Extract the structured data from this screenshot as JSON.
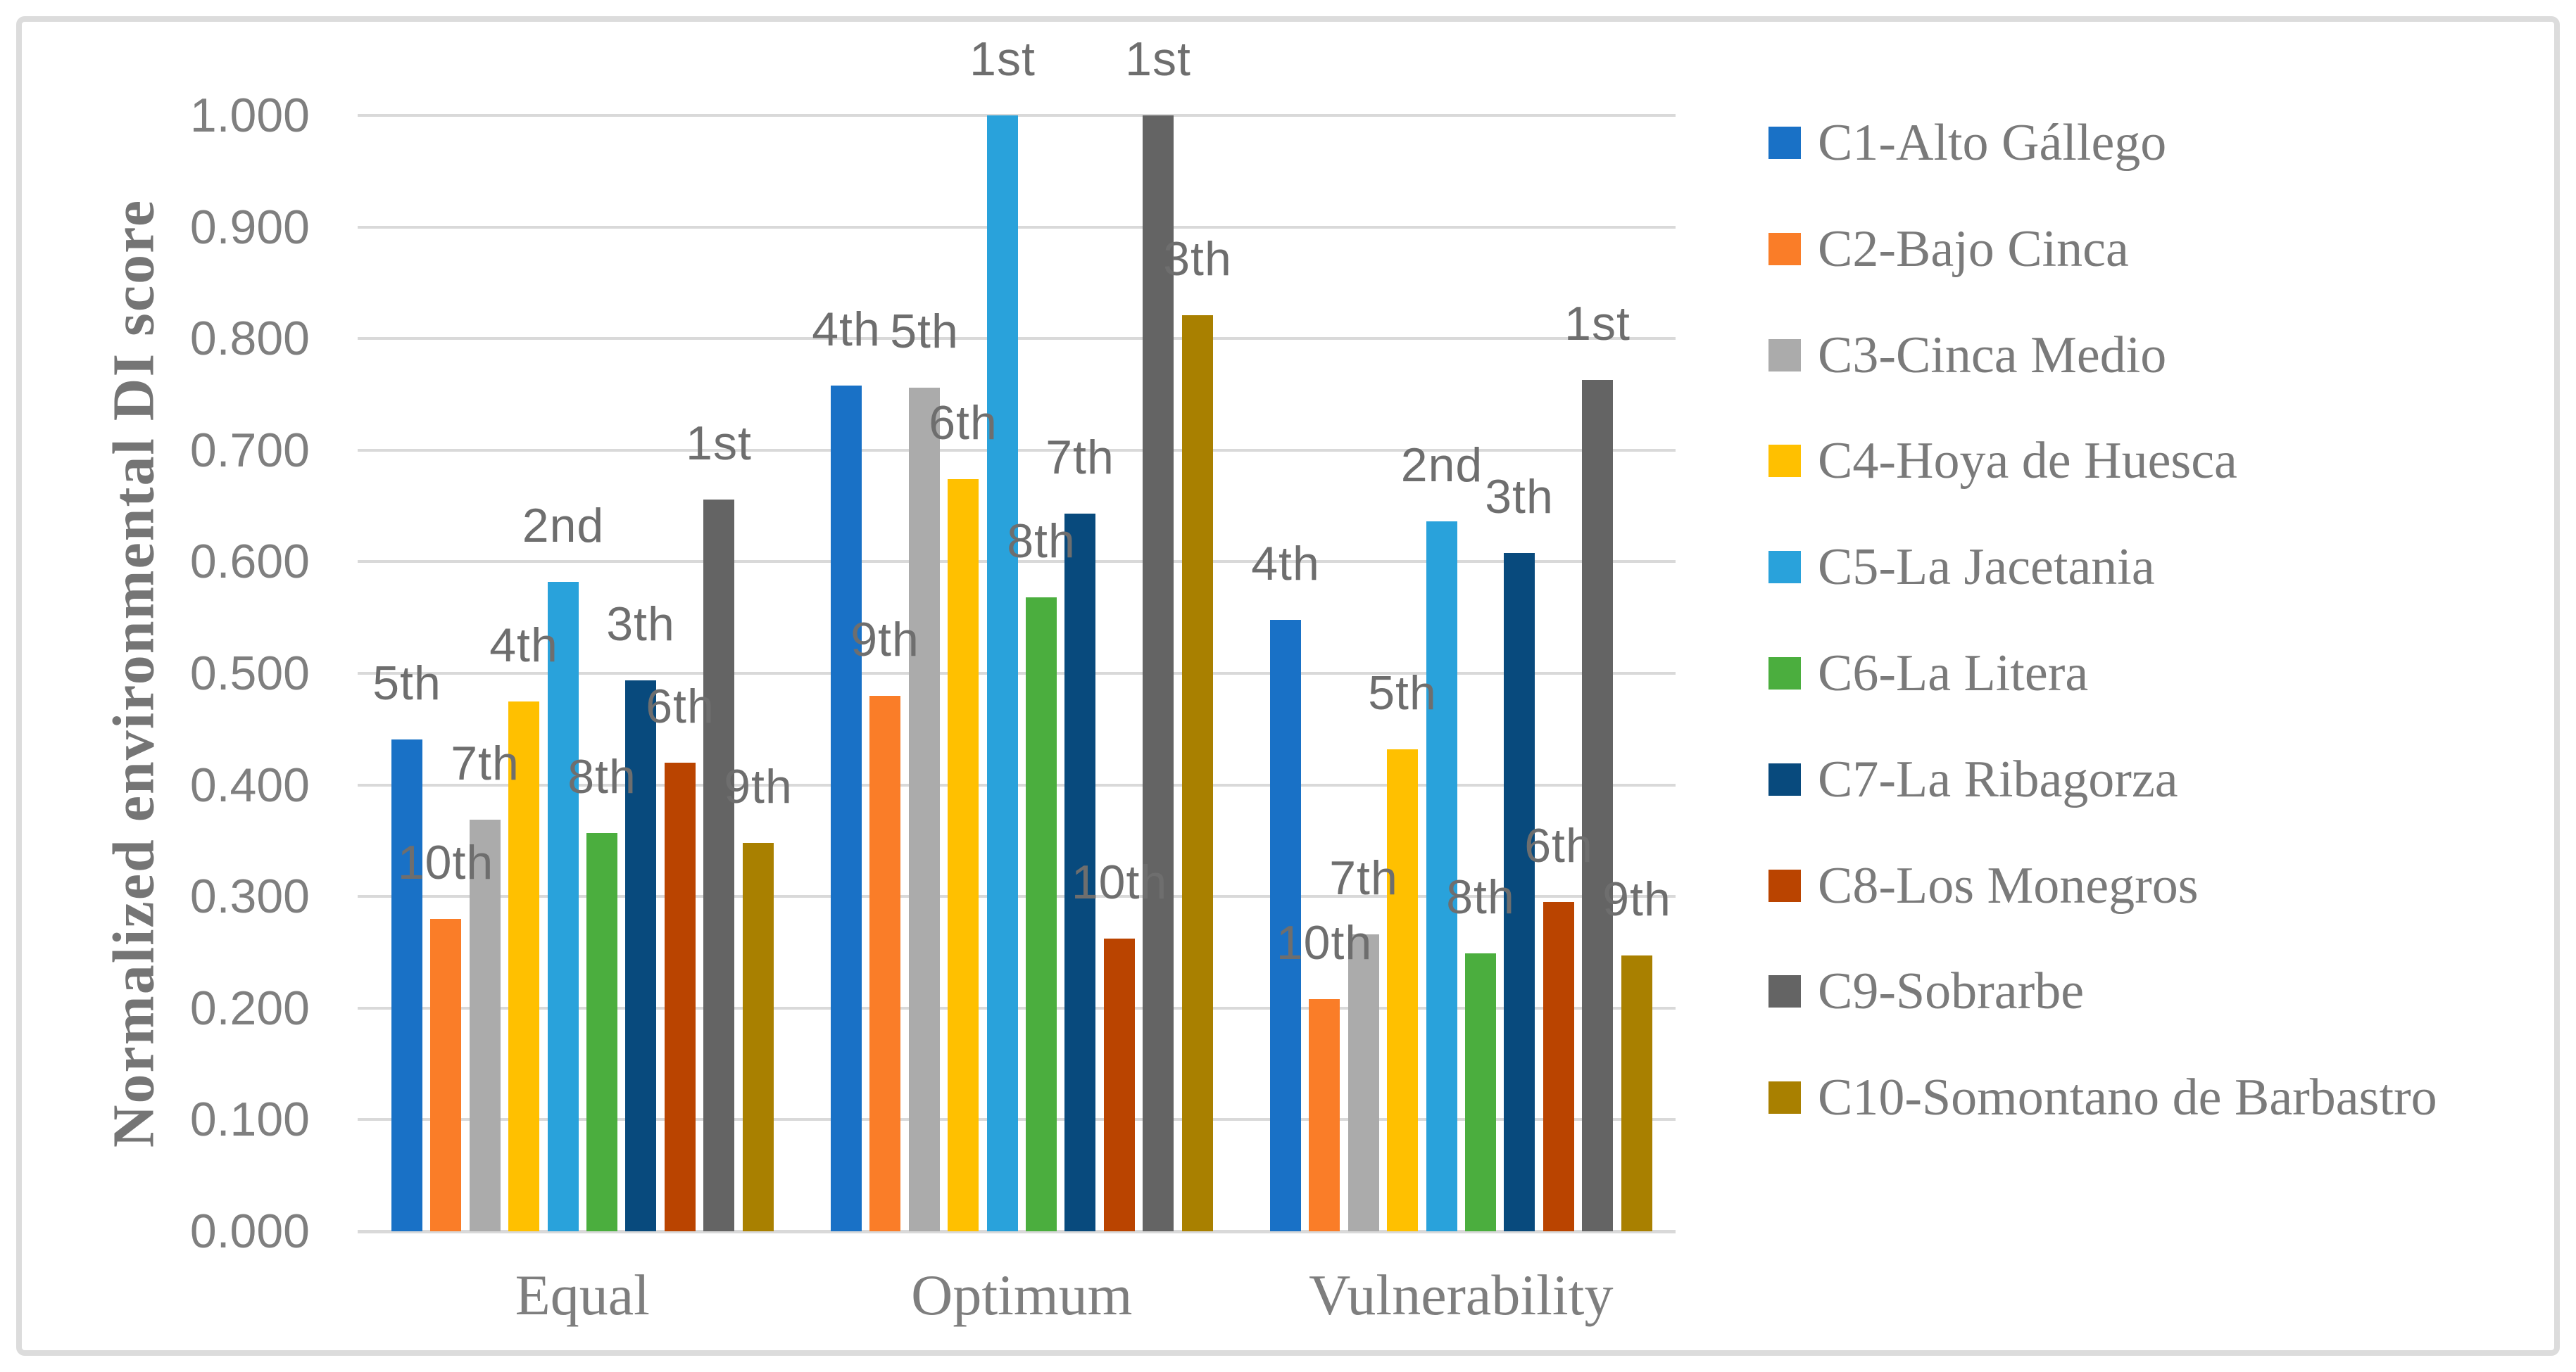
{
  "figure": {
    "background": "#FFFFFF",
    "border_color": "#DCDCDC",
    "gridline_color": "#D9D9D9",
    "text_gray": "#7F7F7F"
  },
  "y_axis": {
    "title": "Normalized environmental DI score",
    "tick_labels": [
      "1.000",
      "0.900",
      "0.800",
      "0.700",
      "0.600",
      "0.500",
      "0.400",
      "0.300",
      "0.200",
      "0.100",
      "0.000"
    ]
  },
  "x_axis": {
    "categories": [
      "Equal",
      "Optimum",
      "Vulnerability"
    ]
  },
  "legend": {
    "position": "right",
    "items": [
      "C1-Alto Gállego",
      "C2-Bajo Cinca",
      "C3-Cinca Medio",
      "C4-Hoya de Huesca",
      "C5-La Jacetania",
      "C6-La Litera",
      "C7-La Ribagorza",
      "C8-Los Monegros",
      "C9-Sobrarbe",
      "C10-Somontano de Barbastro"
    ]
  },
  "chart_data": {
    "type": "bar",
    "title": "",
    "xlabel": "",
    "ylabel": "Normalized environmental DI score",
    "ylim": [
      0,
      1
    ],
    "grid": true,
    "legend_position": "right",
    "categories": [
      "Equal",
      "Optimum",
      "Vulnerability"
    ],
    "y_tick_labels": [
      "1.000",
      "0.900",
      "0.800",
      "0.700",
      "0.600",
      "0.500",
      "0.400",
      "0.300",
      "0.200",
      "0.100",
      "0.000"
    ],
    "series": [
      {
        "name": "C1-Alto Gállego",
        "color": "#1971C6",
        "values": [
          0.441,
          0.758,
          0.548
        ],
        "ranks": [
          "5th",
          "4th",
          "4th"
        ]
      },
      {
        "name": "C2-Bajo Cinca",
        "color": "#FA7D28",
        "values": [
          0.28,
          0.48,
          0.208
        ],
        "ranks": [
          "10th",
          "9th",
          "10th"
        ]
      },
      {
        "name": "C3-Cinca Medio",
        "color": "#ABABAB",
        "values": [
          0.369,
          0.756,
          0.266
        ],
        "ranks": [
          "7th",
          "5th",
          "7th"
        ]
      },
      {
        "name": "C4-Hoya de Huesca",
        "color": "#FFC000",
        "values": [
          0.475,
          0.674,
          0.432
        ],
        "ranks": [
          "4th",
          "6th",
          "5th"
        ]
      },
      {
        "name": "C5-La Jacetania",
        "color": "#29A2DB",
        "values": [
          0.582,
          1.0,
          0.636
        ],
        "ranks": [
          "2nd",
          "1st",
          "2nd"
        ]
      },
      {
        "name": "C6-La Litera",
        "color": "#4BAE3E",
        "values": [
          0.357,
          0.568,
          0.249
        ],
        "ranks": [
          "8th",
          "8th",
          "8th"
        ]
      },
      {
        "name": "C7-La Ribagorza",
        "color": "#084A7D",
        "values": [
          0.494,
          0.643,
          0.608
        ],
        "ranks": [
          "3th",
          "7th",
          "3th"
        ]
      },
      {
        "name": "C8-Los Monegros",
        "color": "#BA4400",
        "values": [
          0.42,
          0.262,
          0.295
        ],
        "ranks": [
          "6th",
          "10th",
          "6th"
        ]
      },
      {
        "name": "C9-Sobrarbe",
        "color": "#646464",
        "values": [
          0.656,
          1.0,
          0.763
        ],
        "ranks": [
          "1st",
          "1st",
          "1st"
        ]
      },
      {
        "name": "C10-Somontano de Barbastro",
        "color": "#A98000",
        "values": [
          0.348,
          0.821,
          0.247
        ],
        "ranks": [
          "9th",
          "3th",
          "9th"
        ]
      }
    ]
  }
}
